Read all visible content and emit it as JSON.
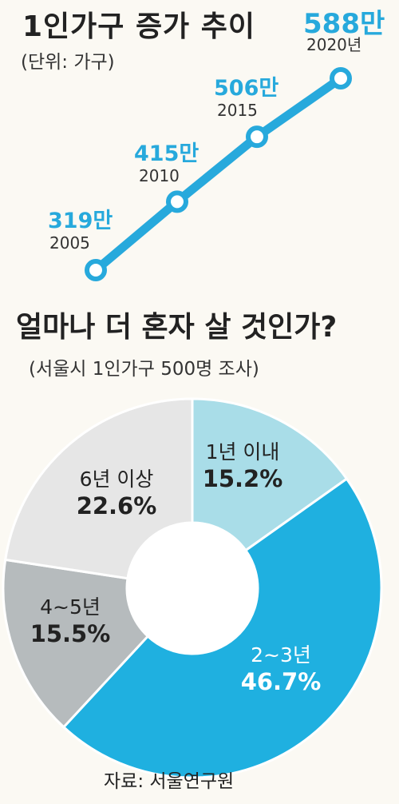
{
  "chart_data": [
    {
      "type": "line",
      "title": "1인가구 증가 추이",
      "subtitle": "(단위: 가구)",
      "x": [
        "2005",
        "2010",
        "2015",
        "2020년"
      ],
      "values": [
        319,
        415,
        506,
        588
      ],
      "value_labels": [
        "319만",
        "415만",
        "506만",
        "588만"
      ],
      "color": "#27a9dc"
    },
    {
      "type": "pie",
      "title": "얼마나 더 혼자 살 것인가?",
      "subtitle": "(서울시 1인가구 500명 조사)",
      "categories": [
        "1년 이내",
        "2~3년",
        "4~5년",
        "6년 이상"
      ],
      "values": [
        15.2,
        46.7,
        15.5,
        22.6
      ],
      "value_labels": [
        "15.2%",
        "46.7%",
        "15.5%",
        "22.6%"
      ],
      "colors": [
        "#a9dde8",
        "#1fb0e0",
        "#b6bbbd",
        "#e6e6e6"
      ],
      "donut": true
    }
  ],
  "source": "자료: 서울연구원"
}
